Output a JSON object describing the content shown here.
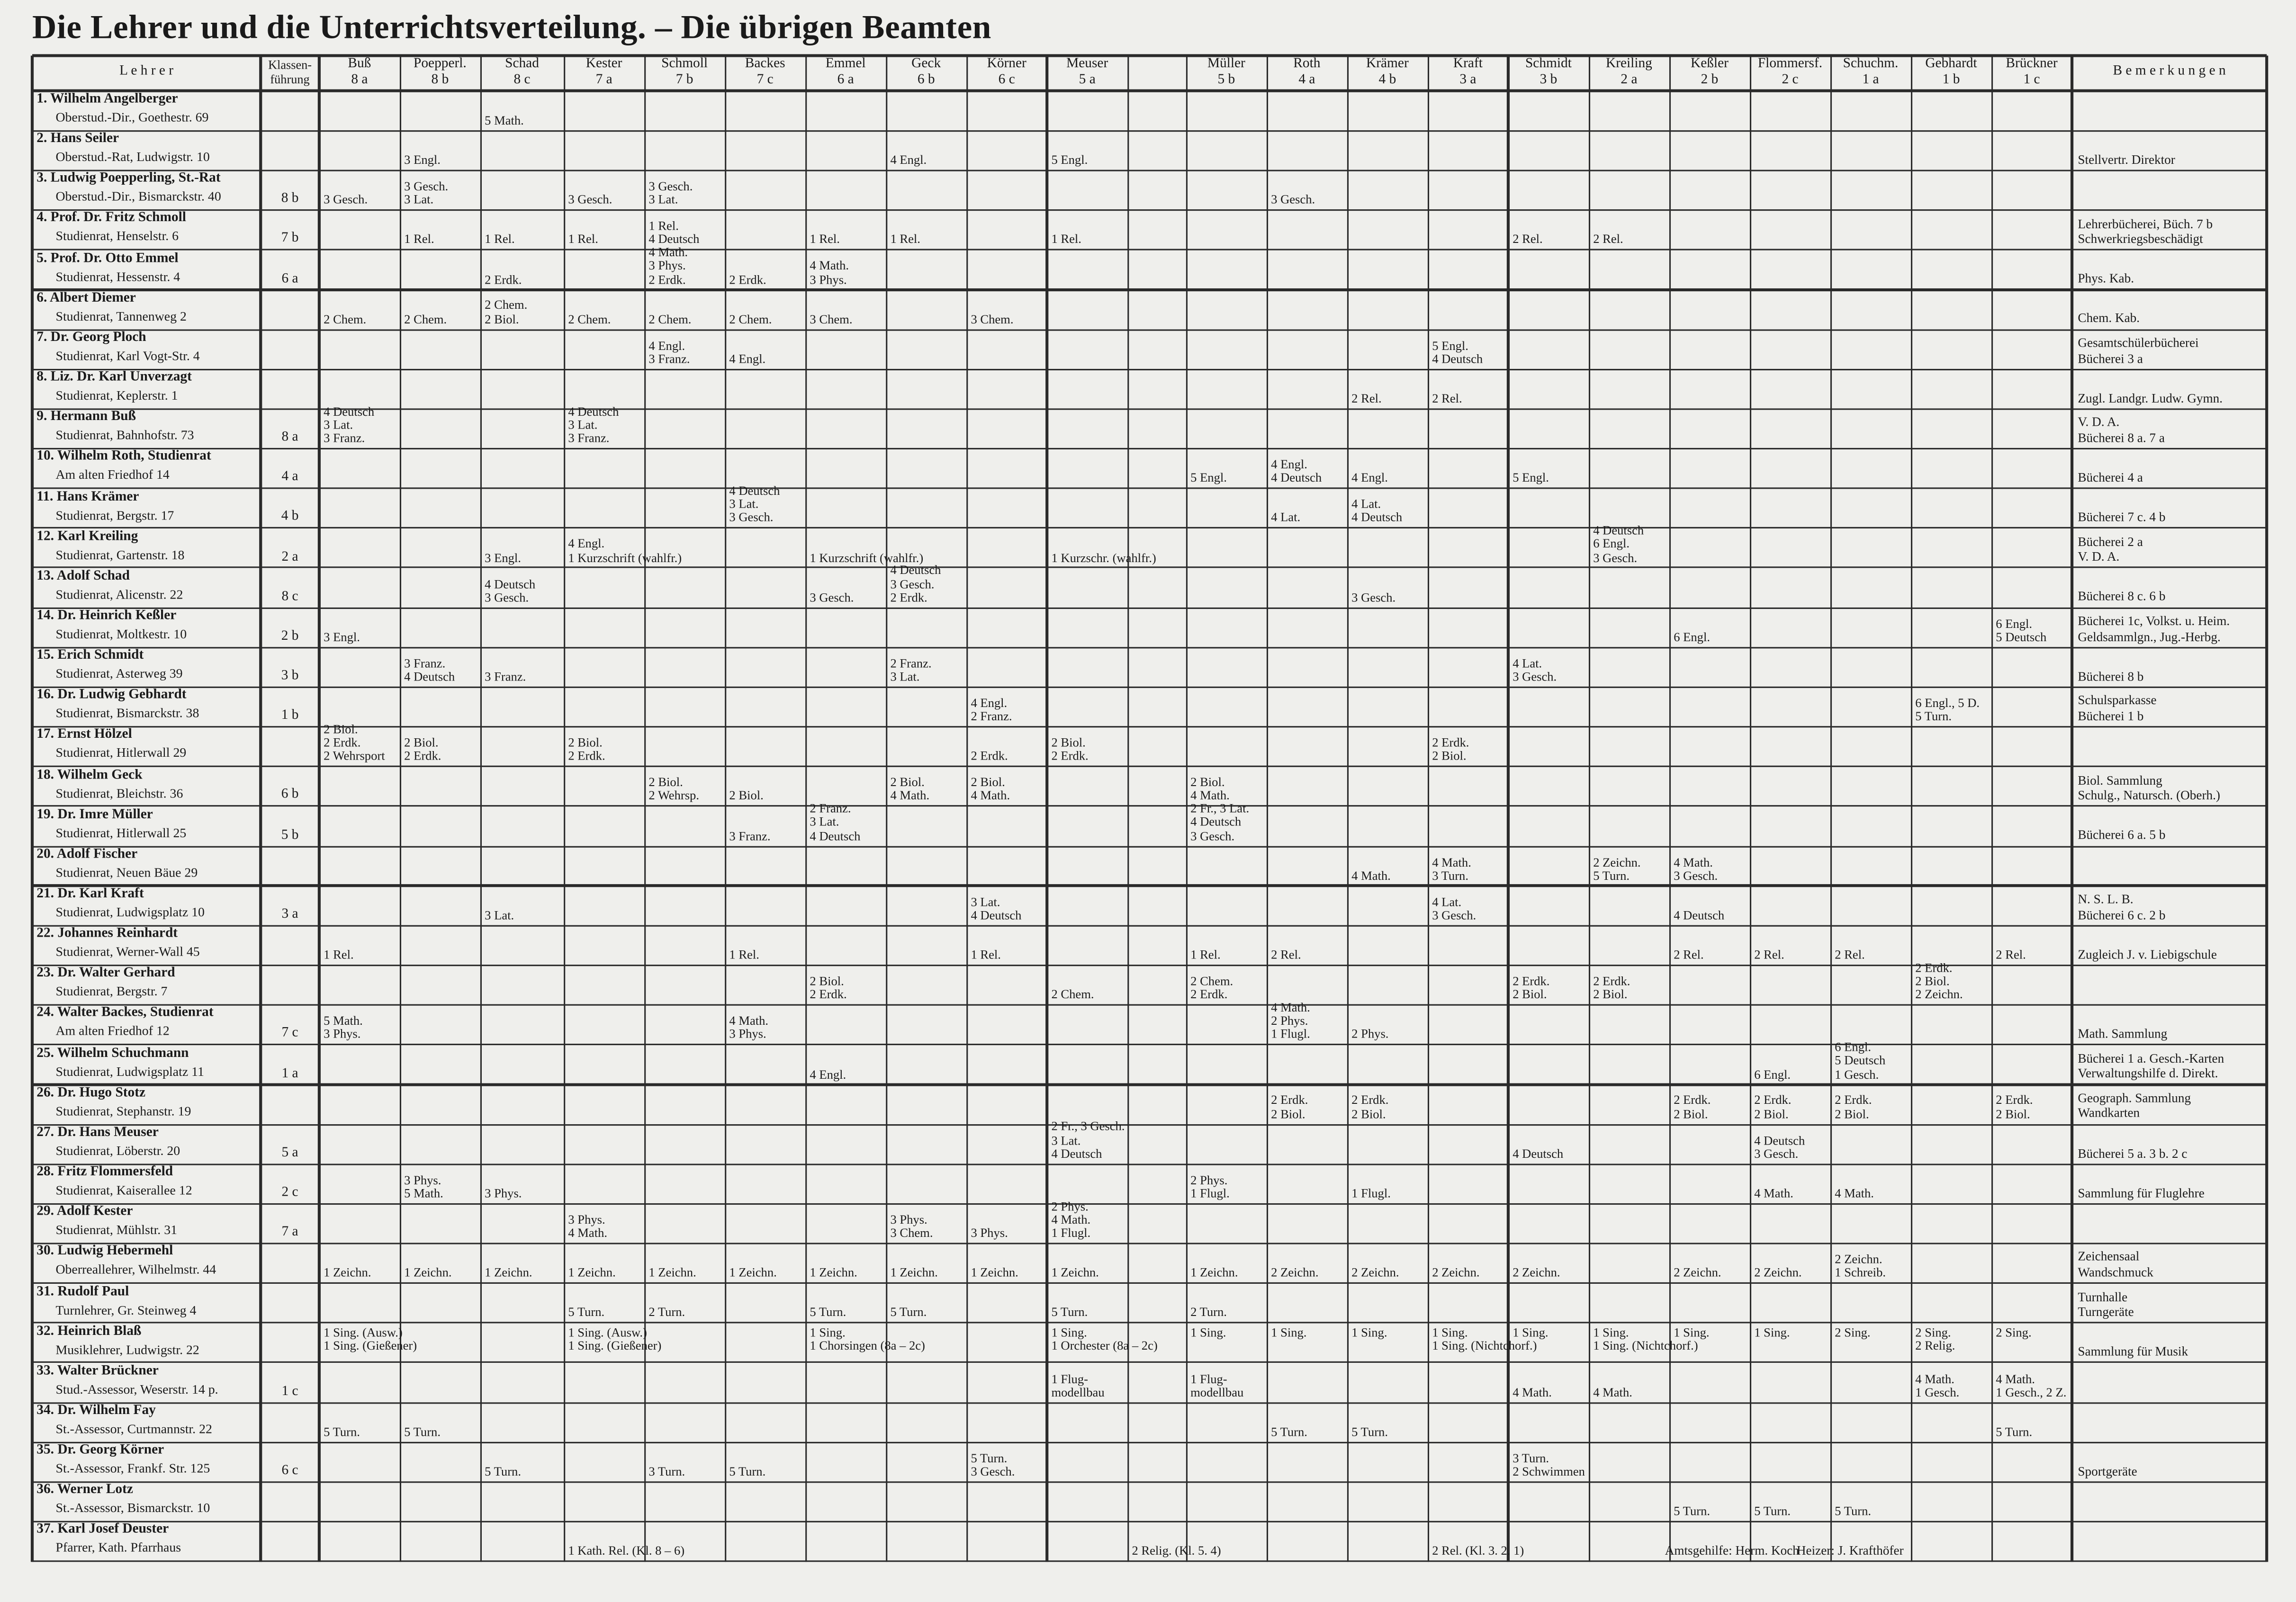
{
  "header": {
    "title": "Die Lehrer und die Unterrichtsverteilung. – Die übrigen Beamten"
  },
  "table": {
    "headers": {
      "teacher": "L e h r e r",
      "class_lead": "Klassen-\nführung",
      "remarks": "B e m e r k u n g e n"
    },
    "columns": [
      {
        "teacher": "Buß",
        "class": "8 a"
      },
      {
        "teacher": "Poepperl.",
        "class": "8 b"
      },
      {
        "teacher": "Schad",
        "class": "8 c"
      },
      {
        "teacher": "Kester",
        "class": "7 a"
      },
      {
        "teacher": "Schmoll",
        "class": "7 b"
      },
      {
        "teacher": "Backes",
        "class": "7 c"
      },
      {
        "teacher": "Emmel",
        "class": "6 a"
      },
      {
        "teacher": "Geck",
        "class": "6 b"
      },
      {
        "teacher": "Körner",
        "class": "6 c"
      },
      {
        "teacher": "Meuser",
        "class": "5 a"
      },
      null,
      {
        "teacher": "Müller",
        "class": "5 b"
      },
      {
        "teacher": "Roth",
        "class": "4 a"
      },
      {
        "teacher": "Krämer",
        "class": "4 b"
      },
      {
        "teacher": "Kraft",
        "class": "3 a"
      },
      {
        "teacher": "Schmidt",
        "class": "3 b"
      },
      {
        "teacher": "Kreiling",
        "class": "2 a"
      },
      {
        "teacher": "Keßler",
        "class": "2 b"
      },
      {
        "teacher": "Flommersf.",
        "class": "2 c"
      },
      {
        "teacher": "Schuchm.",
        "class": "1 a"
      },
      {
        "teacher": "Gebhardt",
        "class": "1 b"
      },
      {
        "teacher": "Brückner",
        "class": "1 c"
      }
    ],
    "rows": [
      {
        "name": "1. Wilhelm Angelberger",
        "address": "Oberstud.-Dir., Goethestr. 69",
        "cells": {
          "2": "5 Math."
        }
      },
      {
        "name": "2. Hans Seiler",
        "address": "Oberstud.-Rat, Ludwigstr. 10",
        "cells": {
          "1": "3 Engl.",
          "7": "4 Engl.",
          "9": "5 Engl."
        },
        "remarks": "Stellvertr. Direktor"
      },
      {
        "name": "3. Ludwig Poepperling, St.-Rat",
        "address": "Oberstud.-Dir., Bismarckstr. 40",
        "class_lead": "8 b",
        "cells": {
          "0": "3 Gesch.",
          "1": "3 Gesch.\n3 Lat.",
          "3": "3 Gesch.",
          "4": "3 Gesch.\n3 Lat.",
          "12": "3 Gesch."
        }
      },
      {
        "name": "4. Prof. Dr. Fritz Schmoll",
        "address": "Studienrat, Henselstr. 6",
        "class_lead": "7 b",
        "cells": {
          "1": "1 Rel.",
          "2": "1 Rel.",
          "3": "1 Rel.",
          "4": "1 Rel.\n4 Deutsch",
          "6": "1 Rel.",
          "7": "1 Rel.",
          "9": "1 Rel.",
          "15": "2 Rel.",
          "16": "2 Rel."
        },
        "remarks": "Lehrerbücherei, Büch. 7 b\nSchwerkriegsbeschädigt"
      },
      {
        "name": "5. Prof. Dr. Otto Emmel",
        "address": "Studienrat, Hessenstr. 4",
        "class_lead": "6 a",
        "cells": {
          "2": "2 Erdk.",
          "4": "4 Math.\n3 Phys.\n2 Erdk.",
          "5": "2 Erdk.",
          "6": "4 Math.\n3 Phys."
        },
        "remarks": "Phys. Kab."
      },
      {
        "name": "6. Albert Diemer",
        "address": "Studienrat, Tannenweg 2",
        "cells": {
          "0": "2 Chem.",
          "1": "2 Chem.",
          "2": "2 Chem.\n2 Biol.",
          "3": "2 Chem.",
          "4": "2 Chem.",
          "5": "2 Chem.",
          "6": "3 Chem.",
          "8": "3 Chem."
        },
        "remarks": "Chem. Kab."
      },
      {
        "name": "7. Dr. Georg Ploch",
        "address": "Studienrat, Karl Vogt-Str. 4",
        "cells": {
          "4": "4 Engl.\n3 Franz.",
          "5": "4 Engl.",
          "14": "5 Engl.\n4 Deutsch"
        },
        "remarks": "Gesamtschülerbücherei\nBücherei 3 a"
      },
      {
        "name": "8. Liz. Dr. Karl Unverzagt",
        "address": "Studienrat, Keplerstr. 1",
        "cells": {
          "13": "2 Rel.",
          "14": "2 Rel."
        },
        "remarks": "Zugl. Landgr. Ludw. Gymn."
      },
      {
        "name": "9. Hermann Buß",
        "address": "Studienrat, Bahnhofstr. 73",
        "class_lead": "8 a",
        "cells": {
          "0": "4 Deutsch\n3 Lat.\n3 Franz.",
          "3": "4 Deutsch\n3 Lat.\n3 Franz."
        },
        "remarks": "V. D. A.\nBücherei 8 a. 7 a"
      },
      {
        "name": "10. Wilhelm Roth, Studienrat",
        "address": "Am alten Friedhof 14",
        "class_lead": "4 a",
        "cells": {
          "11": "5 Engl.",
          "12": "4 Engl.\n4 Deutsch",
          "13": "4 Engl.",
          "15": "5 Engl."
        },
        "remarks": "Bücherei 4 a"
      },
      {
        "name": "11. Hans Krämer",
        "address": "Studienrat, Bergstr. 17",
        "class_lead": "4 b",
        "cells": {
          "5": "4 Deutsch\n3 Lat.\n3 Gesch.",
          "12": "4 Lat.",
          "13": "4 Lat.\n4 Deutsch"
        },
        "remarks": "Bücherei 7 c. 4 b"
      },
      {
        "name": "12. Karl Kreiling",
        "address": "Studienrat, Gartenstr. 18",
        "class_lead": "2 a",
        "cells": {
          "2": "3 Engl.",
          "3": "4 Engl.\n1 Kurzschrift (wahlfr.)",
          "6": "1 Kurzschrift (wahlfr.)",
          "9": "1 Kurzschr. (wahlfr.)",
          "16": "4 Deutsch\n6 Engl.\n3 Gesch."
        },
        "remarks": "Bücherei 2 a\nV. D. A."
      },
      {
        "name": "13. Adolf Schad",
        "address": "Studienrat, Alicenstr. 22",
        "class_lead": "8 c",
        "cells": {
          "2": "4 Deutsch\n3 Gesch.",
          "6": "3 Gesch.",
          "7": "4 Deutsch\n3 Gesch.\n2 Erdk.",
          "13": "3 Gesch."
        },
        "remarks": "Bücherei 8 c. 6 b"
      },
      {
        "name": "14. Dr. Heinrich Keßler",
        "address": "Studienrat, Moltkestr. 10",
        "class_lead": "2 b",
        "cells": {
          "0": "3 Engl.",
          "17": "6 Engl.",
          "21": "6 Engl.\n5 Deutsch"
        },
        "remarks": "Bücherei 1c, Volkst. u. Heim.\nGeldsammlgn., Jug.-Herbg."
      },
      {
        "name": "15. Erich Schmidt",
        "address": "Studienrat, Asterweg 39",
        "class_lead": "3 b",
        "cells": {
          "1": "3 Franz.\n4 Deutsch",
          "2": "3 Franz.",
          "7": "2 Franz.\n3 Lat.",
          "15": "4 Lat.\n3 Gesch."
        },
        "remarks": "Bücherei 8 b"
      },
      {
        "name": "16. Dr. Ludwig Gebhardt",
        "address": "Studienrat, Bismarckstr. 38",
        "class_lead": "1 b",
        "cells": {
          "8": "4 Engl.\n2 Franz.",
          "20": "6 Engl., 5 D.\n5 Turn."
        },
        "remarks": "Schulsparkasse\nBücherei 1 b"
      },
      {
        "name": "17. Ernst Hölzel",
        "address": "Studienrat, Hitlerwall 29",
        "cells": {
          "0": "2 Biol.\n2 Erdk.\n2 Wehrsport",
          "1": "2 Biol.\n2 Erdk.",
          "3": "2 Biol.\n2 Erdk.",
          "8": "2 Erdk.",
          "9": "2 Biol.\n2 Erdk.",
          "14": "2 Erdk.\n2 Biol."
        }
      },
      {
        "name": "18. Wilhelm Geck",
        "address": "Studienrat, Bleichstr. 36",
        "class_lead": "6 b",
        "cells": {
          "4": "2 Biol.\n2 Wehrsp.",
          "5": "2 Biol.",
          "7": "2 Biol.\n4 Math.",
          "8": "2 Biol.\n4 Math.",
          "11": "2 Biol.\n4 Math."
        },
        "remarks": "Biol. Sammlung\nSchulg., Natursch. (Oberh.)"
      },
      {
        "name": "19. Dr. Imre Müller",
        "address": "Studienrat, Hitlerwall 25",
        "class_lead": "5 b",
        "cells": {
          "5": "3 Franz.",
          "6": "2 Franz.\n3 Lat.\n4 Deutsch",
          "11": "2 Fr., 3 Lat.\n4 Deutsch\n3 Gesch."
        },
        "remarks": "Bücherei 6 a. 5 b"
      },
      {
        "name": "20. Adolf Fischer",
        "address": "Studienrat, Neuen Bäue 29",
        "cells": {
          "13": "4 Math.",
          "14": "4 Math.\n3 Turn.",
          "16": "2 Zeichn.\n5 Turn.",
          "17": "4 Math.\n3 Gesch."
        }
      },
      {
        "name": "21. Dr. Karl Kraft",
        "address": "Studienrat, Ludwigsplatz 10",
        "class_lead": "3 a",
        "cells": {
          "2": "3 Lat.",
          "8": "3 Lat.\n4 Deutsch",
          "14": "4 Lat.\n3 Gesch.",
          "17": "4 Deutsch"
        },
        "remarks": "N. S. L. B.\nBücherei 6 c. 2 b"
      },
      {
        "name": "22. Johannes Reinhardt",
        "address": "Studienrat, Werner-Wall 45",
        "cells": {
          "0": "1 Rel.",
          "5": "1 Rel.",
          "8": "1 Rel.",
          "11": "1 Rel.",
          "12": "2 Rel.",
          "17": "2 Rel.",
          "18": "2 Rel.",
          "19": "2 Rel.",
          "21": "2 Rel."
        },
        "remarks": "Zugleich J. v. Liebigschule"
      },
      {
        "name": "23. Dr. Walter Gerhard",
        "address": "Studienrat, Bergstr. 7",
        "cells": {
          "6": "2 Biol.\n2 Erdk.",
          "9": "2 Chem.",
          "11": "2 Chem.\n2 Erdk.",
          "15": "2 Erdk.\n2 Biol.",
          "16": "2 Erdk.\n2 Biol.",
          "20": "2 Erdk.\n2 Biol.\n2 Zeichn."
        }
      },
      {
        "name": "24. Walter Backes, Studienrat",
        "address": "Am alten Friedhof 12",
        "class_lead": "7 c",
        "cells": {
          "0": "5 Math.\n3 Phys.",
          "5": "4 Math.\n3 Phys.",
          "12": "4 Math.\n2 Phys.\n1 Flugl.",
          "13": "2 Phys."
        },
        "remarks": "Math. Sammlung"
      },
      {
        "name": "25. Wilhelm Schuchmann",
        "address": "Studienrat, Ludwigsplatz 11",
        "class_lead": "1 a",
        "cells": {
          "6": "4 Engl.",
          "18": "6 Engl.",
          "19": "6 Engl.\n5 Deutsch\n1 Gesch."
        },
        "remarks": "Bücherei 1 a. Gesch.-Karten\nVerwaltungshilfe d. Direkt."
      },
      {
        "name": "26. Dr. Hugo Stotz",
        "address": "Studienrat, Stephanstr. 19",
        "cells": {
          "12": "2 Erdk.\n2 Biol.",
          "13": "2 Erdk.\n2 Biol.",
          "17": "2 Erdk.\n2 Biol.",
          "18": "2 Erdk.\n2 Biol.",
          "19": "2 Erdk.\n2 Biol.",
          "21": "2 Erdk.\n2 Biol."
        },
        "remarks": "Geograph. Sammlung\nWandkarten"
      },
      {
        "name": "27. Dr. Hans Meuser",
        "address": "Studienrat, Löberstr. 20",
        "class_lead": "5 a",
        "cells": {
          "9": "2 Fr., 3 Gesch.\n3 Lat.\n4 Deutsch",
          "15": "4 Deutsch",
          "18": "4 Deutsch\n3 Gesch."
        },
        "remarks": "Bücherei 5 a. 3 b. 2 c"
      },
      {
        "name": "28. Fritz Flommersfeld",
        "address": "Studienrat, Kaiserallee 12",
        "class_lead": "2 c",
        "cells": {
          "1": "3 Phys.\n5 Math.",
          "2": "3 Phys.",
          "11": "2 Phys.\n1 Flugl.",
          "13": "1 Flugl.",
          "18": "4 Math.",
          "19": "4 Math."
        },
        "remarks": "Sammlung für Fluglehre"
      },
      {
        "name": "29. Adolf Kester",
        "address": "Studienrat, Mühlstr. 31",
        "class_lead": "7 a",
        "cells": {
          "3": "3 Phys.\n4 Math.",
          "7": "3 Phys.\n3 Chem.",
          "8": "3 Phys.",
          "9": "2 Phys.\n4 Math.\n1 Flugl."
        }
      },
      {
        "name": "30. Ludwig Hebermehl",
        "address": "Oberreallehrer, Wilhelmstr. 44",
        "cells": {
          "0": "1 Zeichn.",
          "1": "1 Zeichn.",
          "2": "1 Zeichn.",
          "3": "1 Zeichn.",
          "4": "1 Zeichn.",
          "5": "1 Zeichn.",
          "6": "1 Zeichn.",
          "7": "1 Zeichn.",
          "8": "1 Zeichn.",
          "9": "1 Zeichn.",
          "11": "1 Zeichn.",
          "12": "2 Zeichn.",
          "13": "2 Zeichn.",
          "14": "2 Zeichn.",
          "15": "2 Zeichn.",
          "17": "2 Zeichn.",
          "18": "2 Zeichn.",
          "19": "2 Zeichn.\n1 Schreib."
        },
        "remarks": "Zeichensaal\nWandschmuck"
      },
      {
        "name": "31. Rudolf Paul",
        "address": "Turnlehrer, Gr. Steinweg 4",
        "cells": {
          "3": "5 Turn.",
          "4": "2 Turn.",
          "6": "5 Turn.",
          "7": "5 Turn.",
          "9": "5 Turn.",
          "11": "2 Turn."
        },
        "remarks": "Turnhalle\nTurngeräte"
      },
      {
        "name": "32. Heinrich Blaß",
        "address": "Musiklehrer, Ludwigstr. 22",
        "align": "top",
        "cells": {
          "0": "1 Sing. (Ausw.)\n1 Sing. (Gießener)",
          "3": "1 Sing. (Ausw.)\n1 Sing. (Gießener)",
          "6": "1 Sing.\n1 Chorsingen (8a – 2c)",
          "9": "1 Sing.\n1 Orchester (8a – 2c)",
          "11": "1 Sing.",
          "12": "1 Sing.",
          "13": "1 Sing.",
          "14": "1 Sing.\n1 Sing. (Nichtchorf.)",
          "15": "1 Sing.",
          "16": "1 Sing.\n1 Sing. (Nichtchorf.)",
          "17": "1 Sing.",
          "18": "1 Sing.",
          "19": "2 Sing.",
          "20": "2 Sing.\n2 Relig.",
          "21": "2 Sing."
        },
        "remarks": "Sammlung für Musik"
      },
      {
        "name": "33. Walter Brückner",
        "address": "Stud.-Assessor, Weserstr. 14 p.",
        "class_lead": "1 c",
        "cells": {
          "9": "1 Flug-\nmodellbau",
          "11": "1 Flug-\nmodellbau",
          "15": "4 Math.",
          "16": "4 Math.",
          "20": "4 Math.\n1 Gesch.",
          "21": "4 Math.\n1 Gesch., 2 Z."
        }
      },
      {
        "name": "34. Dr. Wilhelm Fay",
        "address": "St.-Assessor, Curtmannstr. 22",
        "cells": {
          "0": "5 Turn.",
          "1": "5 Turn.",
          "12": "5 Turn.",
          "13": "5 Turn.",
          "21": "5 Turn."
        }
      },
      {
        "name": "35. Dr. Georg Körner",
        "address": "St.-Assessor, Frankf. Str. 125",
        "class_lead": "6 c",
        "cells": {
          "2": "5 Turn.",
          "4": "3 Turn.",
          "5": "5 Turn.",
          "8": "5 Turn.\n3 Gesch.",
          "15": "3 Turn.\n2 Schwimmen"
        },
        "remarks": "Sportgeräte"
      },
      {
        "name": "36. Werner Lotz",
        "address": "St.-Assessor, Bismarckstr. 10",
        "cells": {
          "17": "5 Turn.",
          "18": "5 Turn.",
          "19": "5 Turn."
        }
      },
      {
        "name": "37. Karl Josef Deuster",
        "address": "Pfarrer, Kath. Pfarrhaus",
        "cells": {
          "3": "1 Kath. Rel. (Kl. 8 – 6)",
          "10": "2 Relig. (Kl. 5. 4)",
          "14": "2 Rel. (Kl. 3. 2. 1)"
        }
      }
    ],
    "staff": [
      "Amtsgehilfe: Herm. Koch",
      "Heizer: J. Krafthöfer"
    ]
  }
}
